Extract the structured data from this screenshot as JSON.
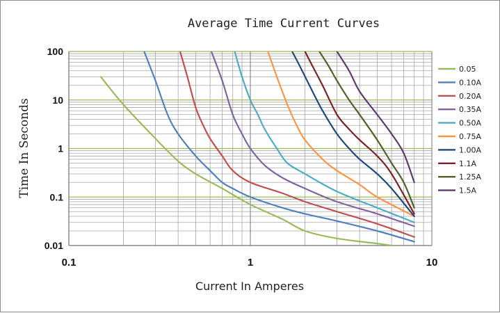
{
  "chart_data": {
    "type": "line",
    "title": "Average Time Current Curves",
    "xlabel": "Current In Amperes",
    "ylabel": "Time In Seconds",
    "xscale": "log",
    "yscale": "log",
    "xlim": [
      0.1,
      10
    ],
    "ylim": [
      0.01,
      100
    ],
    "x_tick_labels": [
      "0.1",
      "1",
      "10"
    ],
    "y_tick_labels": [
      "0.01",
      "0.1",
      "1",
      "10",
      "100"
    ],
    "grid": true,
    "legend_position": "right",
    "series": [
      {
        "name": "0.05",
        "color": "#9BBB59",
        "points": [
          [
            0.15,
            30
          ],
          [
            0.2,
            8
          ],
          [
            0.3,
            1.6
          ],
          [
            0.4,
            0.55
          ],
          [
            0.5,
            0.3
          ],
          [
            0.7,
            0.15
          ],
          [
            1.0,
            0.07
          ],
          [
            1.5,
            0.035
          ],
          [
            2.0,
            0.02
          ],
          [
            3.0,
            0.014
          ],
          [
            5.0,
            0.011
          ],
          [
            6.0,
            0.01
          ]
        ]
      },
      {
        "name": "0.10A",
        "color": "#4F81BD",
        "points": [
          [
            0.26,
            100
          ],
          [
            0.3,
            25
          ],
          [
            0.35,
            5
          ],
          [
            0.4,
            2
          ],
          [
            0.5,
            0.7
          ],
          [
            0.6,
            0.35
          ],
          [
            0.7,
            0.2
          ],
          [
            0.8,
            0.15
          ],
          [
            1.0,
            0.1
          ],
          [
            1.5,
            0.06
          ],
          [
            2.0,
            0.045
          ],
          [
            3.0,
            0.032
          ],
          [
            5.0,
            0.02
          ],
          [
            8.0,
            0.012
          ]
        ]
      },
      {
        "name": "0.20A",
        "color": "#C0504D",
        "points": [
          [
            0.41,
            100
          ],
          [
            0.45,
            30
          ],
          [
            0.5,
            7
          ],
          [
            0.55,
            3
          ],
          [
            0.6,
            1.6
          ],
          [
            0.7,
            0.7
          ],
          [
            0.8,
            0.35
          ],
          [
            1.0,
            0.2
          ],
          [
            1.5,
            0.12
          ],
          [
            2.0,
            0.08
          ],
          [
            3.0,
            0.05
          ],
          [
            5.0,
            0.028
          ],
          [
            8.0,
            0.015
          ]
        ]
      },
      {
        "name": "0.35A",
        "color": "#8064A2",
        "points": [
          [
            0.61,
            100
          ],
          [
            0.7,
            25
          ],
          [
            0.8,
            5
          ],
          [
            0.9,
            2
          ],
          [
            1.0,
            1
          ],
          [
            1.2,
            0.45
          ],
          [
            1.5,
            0.25
          ],
          [
            2.0,
            0.15
          ],
          [
            3.0,
            0.08
          ],
          [
            5.0,
            0.045
          ],
          [
            8.0,
            0.025
          ]
        ]
      },
      {
        "name": "0.50A",
        "color": "#4BACC6",
        "points": [
          [
            0.82,
            100
          ],
          [
            0.9,
            30
          ],
          [
            1.0,
            10
          ],
          [
            1.1,
            5
          ],
          [
            1.2,
            2.5
          ],
          [
            1.4,
            1
          ],
          [
            1.6,
            0.5
          ],
          [
            2.0,
            0.3
          ],
          [
            3.0,
            0.13
          ],
          [
            5.0,
            0.06
          ],
          [
            8.0,
            0.03
          ]
        ]
      },
      {
        "name": "0.75A",
        "color": "#F79646",
        "points": [
          [
            1.25,
            100
          ],
          [
            1.4,
            30
          ],
          [
            1.6,
            8
          ],
          [
            1.8,
            3
          ],
          [
            2.0,
            1.5
          ],
          [
            2.5,
            0.6
          ],
          [
            3.0,
            0.35
          ],
          [
            4.0,
            0.18
          ],
          [
            5.0,
            0.1
          ],
          [
            8.0,
            0.04
          ]
        ]
      },
      {
        "name": "1.00A",
        "color": "#1F497D",
        "points": [
          [
            1.7,
            100
          ],
          [
            1.9,
            45
          ],
          [
            2.2,
            15
          ],
          [
            2.5,
            6
          ],
          [
            3.0,
            2
          ],
          [
            3.5,
            1
          ],
          [
            4.0,
            0.6
          ],
          [
            5.0,
            0.3
          ],
          [
            6.0,
            0.15
          ],
          [
            8.0,
            0.04
          ]
        ]
      },
      {
        "name": "1.1A",
        "color": "#7B2226",
        "points": [
          [
            2.0,
            100
          ],
          [
            2.2,
            50
          ],
          [
            2.5,
            20
          ],
          [
            3.0,
            5
          ],
          [
            3.5,
            2.5
          ],
          [
            4.0,
            1.5
          ],
          [
            5.0,
            0.7
          ],
          [
            6.0,
            0.3
          ],
          [
            8.0,
            0.045
          ]
        ]
      },
      {
        "name": "1.25A",
        "color": "#4F6228",
        "points": [
          [
            2.4,
            100
          ],
          [
            2.7,
            50
          ],
          [
            3.0,
            25
          ],
          [
            3.5,
            10
          ],
          [
            4.0,
            5
          ],
          [
            5.0,
            1.5
          ],
          [
            6.0,
            0.5
          ],
          [
            7.0,
            0.2
          ],
          [
            8.0,
            0.06
          ]
        ]
      },
      {
        "name": "1.5A",
        "color": "#5E3A6E",
        "points": [
          [
            3.0,
            100
          ],
          [
            3.5,
            40
          ],
          [
            4.0,
            15
          ],
          [
            5.0,
            5
          ],
          [
            6.0,
            2
          ],
          [
            7.0,
            0.8
          ],
          [
            8.0,
            0.2
          ]
        ]
      }
    ]
  }
}
